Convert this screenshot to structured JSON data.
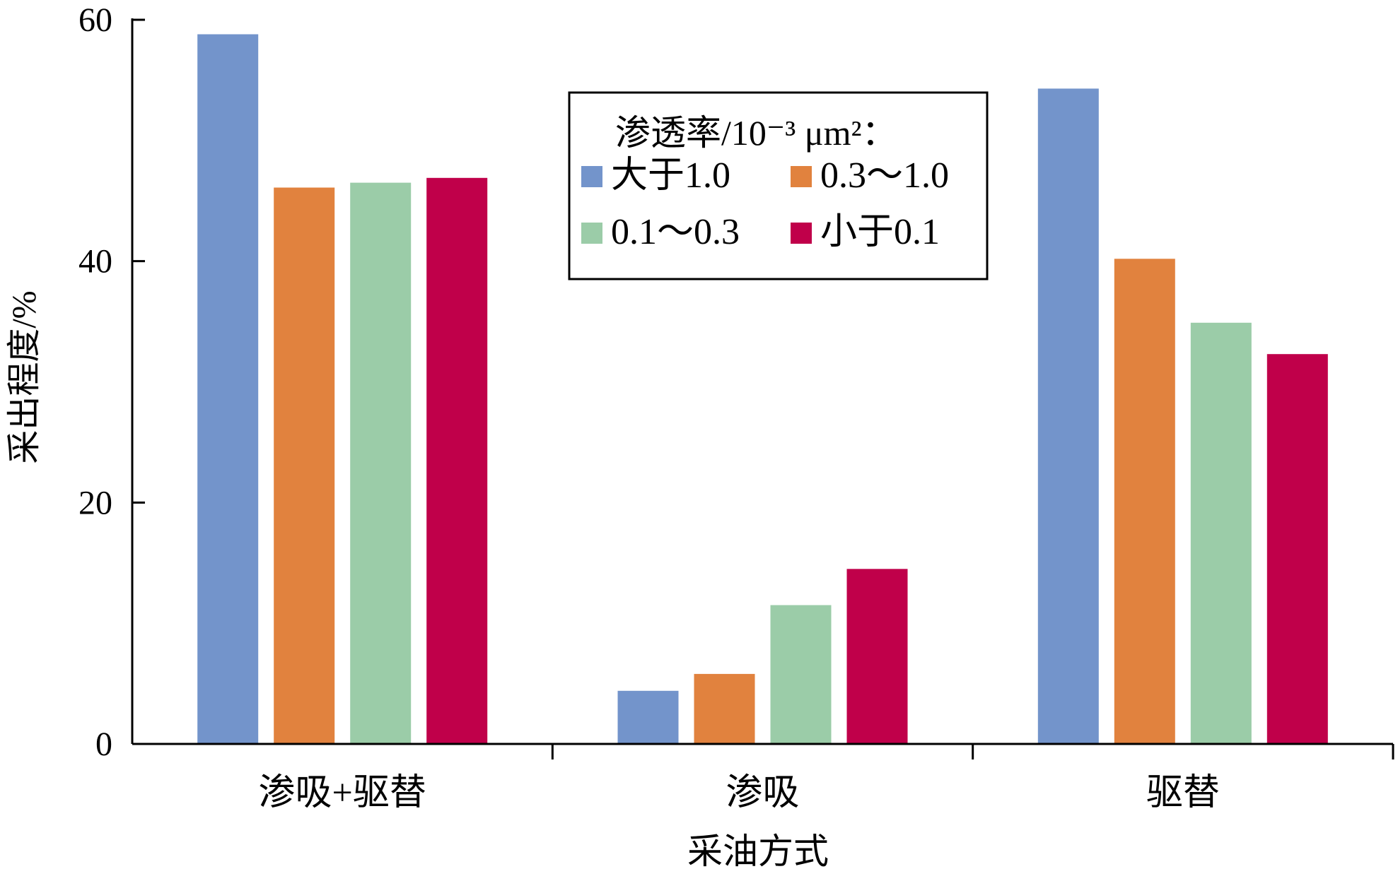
{
  "chart_data": {
    "type": "bar",
    "title": "",
    "xlabel": "采油方式",
    "ylabel": "采出程度/%",
    "ylim": [
      0,
      60
    ],
    "yticks": [
      "0",
      "20",
      "40",
      "60"
    ],
    "categories": [
      "渗吸+驱替",
      "渗吸",
      "驱替"
    ],
    "grid": false,
    "legend": {
      "title": "渗透率/10⁻³ μm²：",
      "placement": "top-center"
    },
    "series": [
      {
        "name": "大于1.0",
        "color": "#7394CB",
        "values": [
          58.8,
          4.4,
          54.3
        ]
      },
      {
        "name": "0.3～1.0",
        "color": "#E1823E",
        "values": [
          46.1,
          5.8,
          40.2
        ]
      },
      {
        "name": "0.1～0.3",
        "color": "#9BCCA8",
        "values": [
          46.5,
          11.5,
          34.9
        ]
      },
      {
        "name": "小于0.1",
        "color": "#C0004A",
        "values": [
          46.9,
          14.5,
          32.3
        ]
      }
    ]
  }
}
